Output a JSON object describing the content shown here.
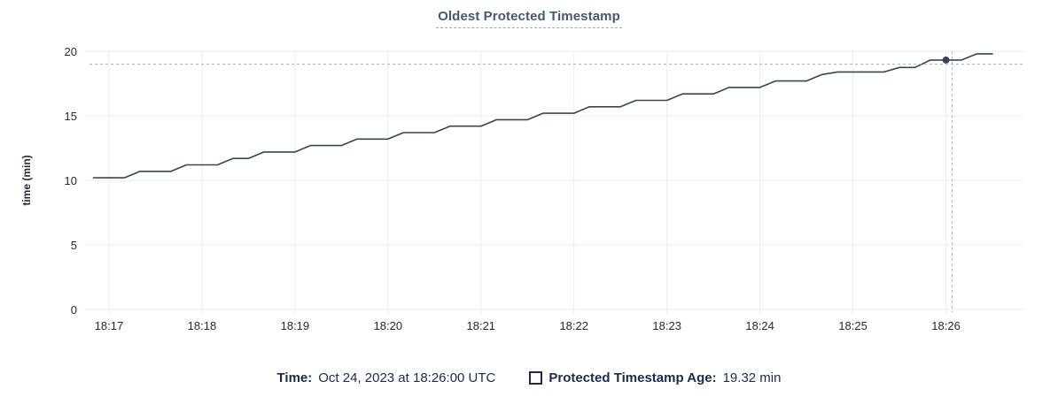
{
  "colors": {
    "title": "#475872",
    "title_underline": "#9aa8c2",
    "series_line": "#394455",
    "hover_dot": "#394455",
    "crosshair": "#9fb2c3",
    "gridline": "#ececec",
    "tick_text": "#242a35",
    "legend_text": "#1a2b4d"
  },
  "chart_data": {
    "type": "line",
    "title": "Oldest Protected Timestamp",
    "xlabel": "",
    "ylabel": "time (min)",
    "ylim": [
      0,
      20
    ],
    "y_ticks": [
      0,
      5,
      10,
      15,
      20
    ],
    "x_ticks": [
      "18:17",
      "18:18",
      "18:19",
      "18:20",
      "18:21",
      "18:22",
      "18:23",
      "18:24",
      "18:25",
      "18:26"
    ],
    "x_range": [
      "18:16:44",
      "18:26:50"
    ],
    "grid": true,
    "legend_position": "bottom",
    "series": [
      {
        "name": "Protected Timestamp Age",
        "unit": "min",
        "points": [
          [
            "18:16:50",
            10.2
          ],
          [
            "18:17:00",
            10.2
          ],
          [
            "18:17:10",
            10.2
          ],
          [
            "18:17:20",
            10.7
          ],
          [
            "18:17:30",
            10.7
          ],
          [
            "18:17:40",
            10.7
          ],
          [
            "18:17:50",
            11.2
          ],
          [
            "18:18:00",
            11.2
          ],
          [
            "18:18:10",
            11.2
          ],
          [
            "18:18:20",
            11.7
          ],
          [
            "18:18:30",
            11.7
          ],
          [
            "18:18:40",
            12.2
          ],
          [
            "18:18:50",
            12.2
          ],
          [
            "18:19:00",
            12.2
          ],
          [
            "18:19:10",
            12.7
          ],
          [
            "18:19:20",
            12.7
          ],
          [
            "18:19:30",
            12.7
          ],
          [
            "18:19:40",
            13.2
          ],
          [
            "18:19:50",
            13.2
          ],
          [
            "18:20:00",
            13.2
          ],
          [
            "18:20:10",
            13.7
          ],
          [
            "18:20:20",
            13.7
          ],
          [
            "18:20:30",
            13.7
          ],
          [
            "18:20:40",
            14.2
          ],
          [
            "18:20:50",
            14.2
          ],
          [
            "18:21:00",
            14.2
          ],
          [
            "18:21:10",
            14.7
          ],
          [
            "18:21:20",
            14.7
          ],
          [
            "18:21:30",
            14.7
          ],
          [
            "18:21:40",
            15.2
          ],
          [
            "18:21:50",
            15.2
          ],
          [
            "18:22:00",
            15.2
          ],
          [
            "18:22:10",
            15.7
          ],
          [
            "18:22:20",
            15.7
          ],
          [
            "18:22:30",
            15.7
          ],
          [
            "18:22:40",
            16.2
          ],
          [
            "18:22:50",
            16.2
          ],
          [
            "18:23:00",
            16.2
          ],
          [
            "18:23:10",
            16.7
          ],
          [
            "18:23:20",
            16.7
          ],
          [
            "18:23:30",
            16.7
          ],
          [
            "18:23:40",
            17.2
          ],
          [
            "18:23:50",
            17.2
          ],
          [
            "18:24:00",
            17.2
          ],
          [
            "18:24:10",
            17.7
          ],
          [
            "18:24:20",
            17.7
          ],
          [
            "18:24:30",
            17.7
          ],
          [
            "18:24:40",
            18.2
          ],
          [
            "18:24:50",
            18.4
          ],
          [
            "18:25:00",
            18.4
          ],
          [
            "18:25:10",
            18.4
          ],
          [
            "18:25:20",
            18.4
          ],
          [
            "18:25:30",
            18.75
          ],
          [
            "18:25:40",
            18.75
          ],
          [
            "18:25:50",
            19.32
          ],
          [
            "18:26:00",
            19.32
          ],
          [
            "18:26:10",
            19.32
          ],
          [
            "18:26:20",
            19.8
          ],
          [
            "18:26:30",
            19.8
          ]
        ]
      }
    ],
    "hover": {
      "point_time": "18:26:00",
      "point_value": 19.32,
      "crosshair_time": "18:26:04",
      "crosshair_value": 19.0
    }
  },
  "footer": {
    "time_label": "Time:",
    "time_value": "Oct 24, 2023 at 18:26:00 UTC",
    "series_label": "Protected Timestamp Age:",
    "series_value": "19.32 min"
  }
}
